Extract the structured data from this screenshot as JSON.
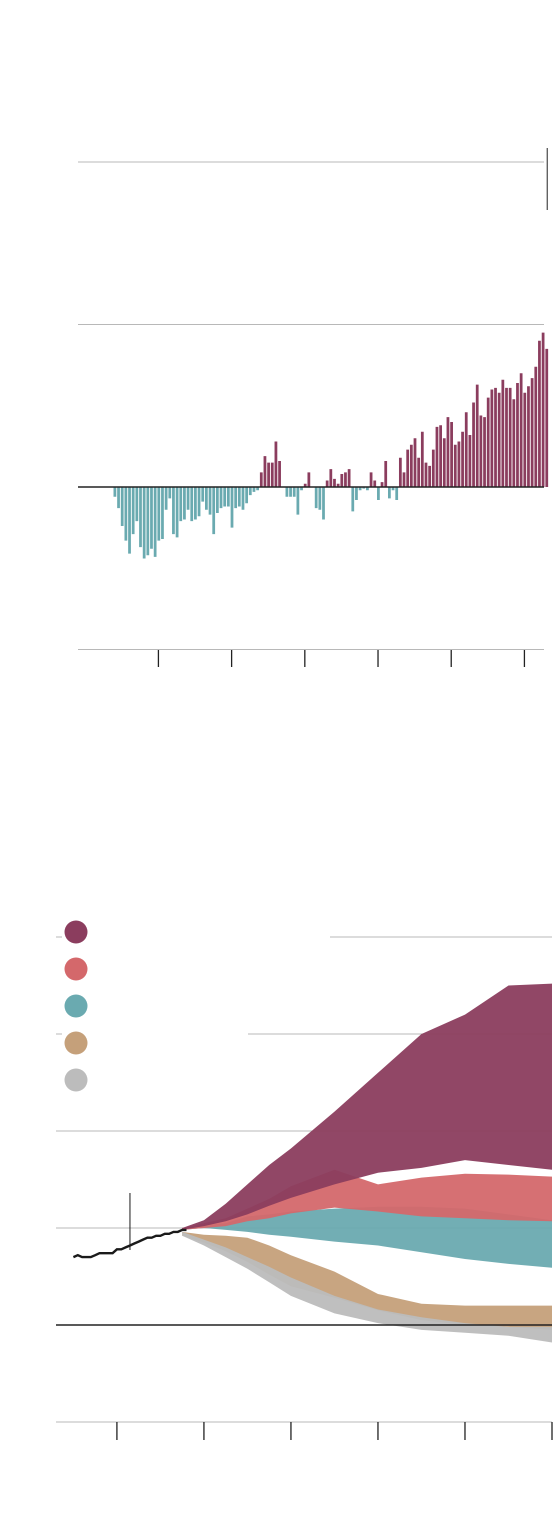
{
  "colors": {
    "warm": "#8b3d5e",
    "cool": "#6aaab0",
    "grid": "#b8b8b8",
    "axis": "#222222",
    "observed": "#1a1a1a"
  },
  "chart_data": [
    {
      "type": "bar",
      "title": "",
      "xlabel": "",
      "ylabel": "",
      "grid": true,
      "ylim": [
        -1,
        2
      ],
      "gridlines": [
        -1,
        1,
        2
      ],
      "start_index": 0,
      "values": [
        -0.06,
        -0.13,
        -0.24,
        -0.33,
        -0.41,
        -0.29,
        -0.21,
        -0.37,
        -0.44,
        -0.42,
        -0.38,
        -0.43,
        -0.33,
        -0.32,
        -0.14,
        -0.07,
        -0.29,
        -0.31,
        -0.21,
        -0.2,
        -0.14,
        -0.21,
        -0.2,
        -0.18,
        -0.09,
        -0.14,
        -0.17,
        -0.29,
        -0.16,
        -0.13,
        -0.12,
        -0.12,
        -0.25,
        -0.13,
        -0.12,
        -0.14,
        -0.1,
        -0.05,
        -0.03,
        -0.02,
        0.09,
        0.19,
        0.15,
        0.15,
        0.28,
        0.16,
        0.0,
        -0.06,
        -0.06,
        -0.06,
        -0.17,
        -0.02,
        0.02,
        0.09,
        0.0,
        -0.13,
        -0.14,
        -0.2,
        0.04,
        0.11,
        0.05,
        0.02,
        0.08,
        0.09,
        0.11,
        -0.15,
        -0.08,
        -0.02,
        -0.01,
        -0.02,
        0.09,
        0.04,
        -0.08,
        0.03,
        0.16,
        -0.07,
        -0.02,
        -0.08,
        0.18,
        0.09,
        0.23,
        0.26,
        0.3,
        0.18,
        0.34,
        0.15,
        0.13,
        0.23,
        0.37,
        0.38,
        0.3,
        0.43,
        0.4,
        0.26,
        0.28,
        0.34,
        0.46,
        0.32,
        0.52,
        0.63,
        0.44,
        0.43,
        0.55,
        0.6,
        0.61,
        0.58,
        0.66,
        0.61,
        0.61,
        0.54,
        0.64,
        0.7,
        0.58,
        0.62,
        0.67,
        0.74,
        0.9,
        0.95,
        0.85
      ],
      "markers": [
        12,
        32,
        52,
        72,
        92,
        112
      ]
    },
    {
      "type": "area",
      "title": "",
      "xlabel": "",
      "ylabel": "",
      "grid": true,
      "legend_position": "top-left",
      "ylim": [
        -1,
        5
      ],
      "gridlines": [
        -1,
        1,
        2,
        3,
        4
      ],
      "x_range": [
        1986,
        2100
      ],
      "x_ticks": [
        2000,
        2020,
        2040,
        2060,
        2080,
        2100
      ],
      "observed": {
        "x": [
          1990,
          1991,
          1992,
          1993,
          1994,
          1995,
          1996,
          1997,
          1998,
          1999,
          2000,
          2001,
          2002,
          2003,
          2004,
          2005,
          2006,
          2007,
          2008,
          2009,
          2010,
          2011,
          2012,
          2013,
          2014,
          2015,
          2016
        ],
        "y": [
          0.7,
          0.72,
          0.7,
          0.7,
          0.7,
          0.72,
          0.74,
          0.74,
          0.74,
          0.74,
          0.78,
          0.78,
          0.8,
          0.82,
          0.84,
          0.86,
          0.88,
          0.9,
          0.9,
          0.92,
          0.92,
          0.94,
          0.94,
          0.96,
          0.96,
          0.98,
          0.98
        ]
      },
      "series": [
        {
          "color": "#c5a07a",
          "x": [
            2015,
            2020,
            2025,
            2030,
            2035,
            2040,
            2050,
            2060,
            2070,
            2080,
            2090,
            2100
          ],
          "low": [
            0.92,
            0.85,
            0.76,
            0.65,
            0.52,
            0.4,
            0.28,
            0.15,
            0.05,
            0.0,
            -0.02,
            -0.05
          ],
          "high": [
            0.96,
            0.93,
            0.92,
            0.9,
            0.82,
            0.72,
            0.55,
            0.32,
            0.22,
            0.2,
            0.2,
            0.2
          ]
        },
        {
          "color": "#bcbcbc",
          "x": [
            2015,
            2020,
            2025,
            2030,
            2035,
            2040,
            2050,
            2060,
            2070,
            2080,
            2090,
            2100
          ],
          "low": [
            0.92,
            0.82,
            0.7,
            0.58,
            0.44,
            0.3,
            0.12,
            0.02,
            -0.05,
            -0.08,
            -0.11,
            -0.18
          ],
          "high": [
            0.96,
            0.88,
            0.8,
            0.7,
            0.6,
            0.49,
            0.3,
            0.16,
            0.08,
            0.02,
            -0.02,
            -0.02
          ]
        },
        {
          "color": "#6aaab0",
          "x": [
            2015,
            2020,
            2025,
            2030,
            2035,
            2040,
            2050,
            2060,
            2070,
            2080,
            2090,
            2100
          ],
          "low": [
            0.98,
            1.0,
            0.98,
            0.96,
            0.93,
            0.91,
            0.86,
            0.82,
            0.75,
            0.68,
            0.63,
            0.59
          ],
          "high": [
            1.0,
            1.03,
            1.05,
            1.12,
            1.14,
            1.17,
            1.2,
            1.22,
            1.22,
            1.2,
            1.14,
            1.08
          ]
        },
        {
          "color": "#d4686b",
          "x": [
            2015,
            2020,
            2025,
            2030,
            2035,
            2040,
            2050,
            2060,
            2070,
            2080,
            2090,
            2100
          ],
          "low": [
            0.98,
            1.0,
            1.02,
            1.07,
            1.1,
            1.15,
            1.21,
            1.17,
            1.12,
            1.1,
            1.08,
            1.07
          ],
          "high": [
            1.0,
            1.05,
            1.1,
            1.2,
            1.3,
            1.43,
            1.6,
            1.45,
            1.52,
            1.56,
            1.55,
            1.53
          ]
        },
        {
          "color": "#8b3d5e",
          "x": [
            2015,
            2020,
            2025,
            2030,
            2035,
            2040,
            2050,
            2060,
            2070,
            2080,
            2090,
            2100
          ],
          "low": [
            0.98,
            1.02,
            1.07,
            1.14,
            1.23,
            1.31,
            1.45,
            1.57,
            1.62,
            1.7,
            1.65,
            1.6
          ],
          "high": [
            1.0,
            1.08,
            1.25,
            1.45,
            1.65,
            1.82,
            2.2,
            2.6,
            3.0,
            3.2,
            3.5,
            3.52
          ]
        }
      ],
      "legend": [
        {
          "color": "#8b3d5e",
          "label": ""
        },
        {
          "color": "#d4686b",
          "label": ""
        },
        {
          "color": "#6aaab0",
          "label": ""
        },
        {
          "color": "#c5a07a",
          "label": ""
        },
        {
          "color": "#bcbcbc",
          "label": ""
        }
      ]
    }
  ]
}
